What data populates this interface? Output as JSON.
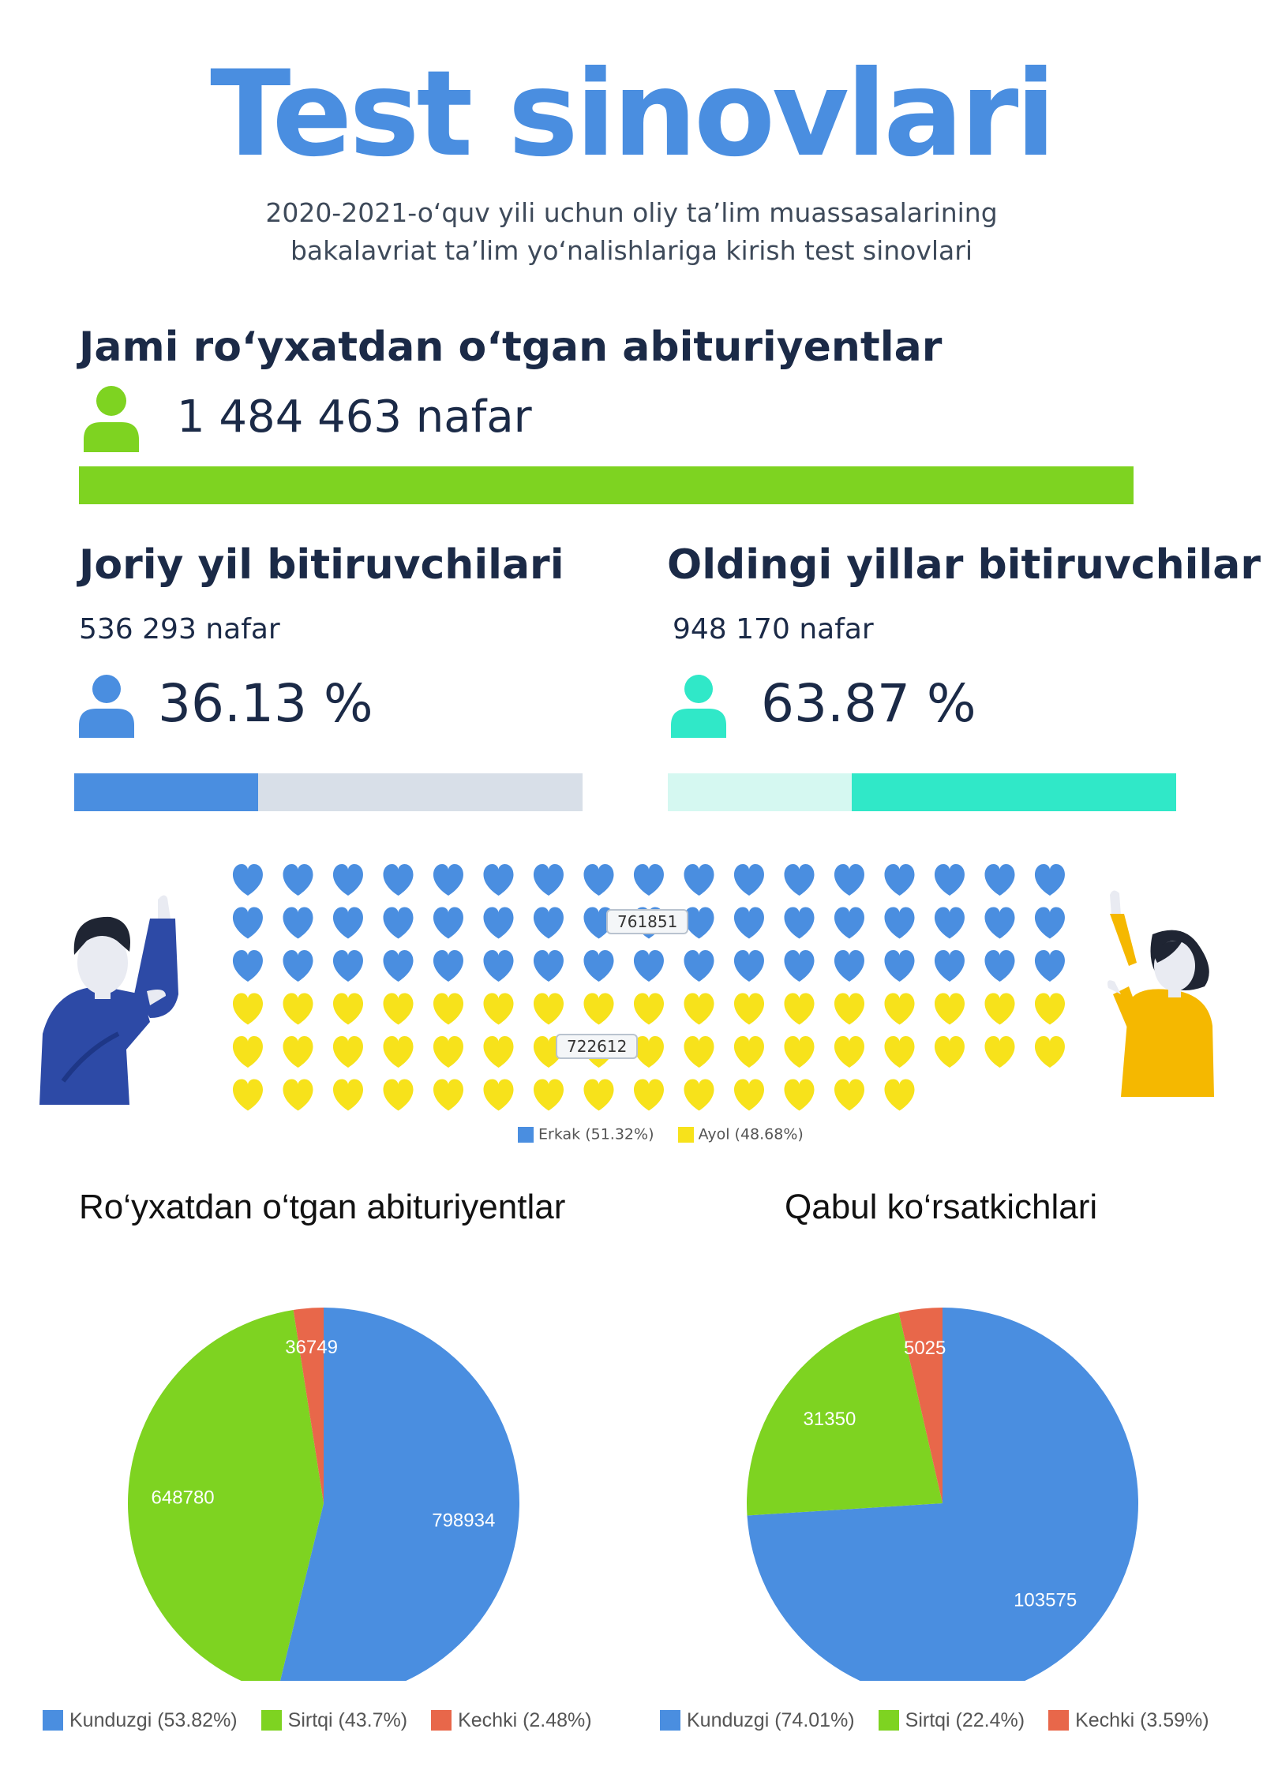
{
  "title": "Test sinovlari",
  "subtitle_line1": "2020-2021-o‘quv yili uchun oliy ta’lim muassasalarining",
  "subtitle_line2": "bakalavriat ta’lim yo‘nalishlariga kirish test sinovlari",
  "total": {
    "heading": "Jami ro‘yxatdan o‘tgan abituriyentlar",
    "value": "1 484 463 nafar",
    "icon": "person-icon",
    "color": "#7ed321"
  },
  "current": {
    "heading": "Joriy yil bitiruvchilari",
    "count": "536 293 nafar",
    "percent": "36.13 %",
    "share": 0.3613,
    "color": "#4a8ee0",
    "track_color": "#d8dfe8"
  },
  "previous": {
    "heading": "Oldingi yillar bitiruvchilari",
    "count": "948 170 nafar",
    "percent": "63.87 %",
    "share": 0.6387,
    "color": "#30e8c8",
    "track_color": "#d5f8f1"
  },
  "colors": {
    "blue": "#4a8ee0",
    "green": "#7ed321",
    "red": "#e8674a",
    "yellow": "#f7e21b"
  },
  "chart_data": [
    {
      "type": "pictogram",
      "icon": "heart-icon",
      "series": [
        {
          "name": "Erkak (51.32%)",
          "value": 761851,
          "value_label": "761851",
          "icons": 51,
          "color": "#4a8ee0"
        },
        {
          "name": "Ayol (48.68%)",
          "value": 722612,
          "value_label": "722612",
          "icons": 48,
          "color": "#f7e21b"
        }
      ]
    },
    {
      "type": "pie",
      "title": "Ro‘yxatdan o‘tgan abituriyentlar",
      "labels": [
        "Kunduzgi (53.82%)",
        "Sirtqi (43.7%)",
        "Kechki (2.48%)"
      ],
      "values": [
        798934,
        648780,
        36749
      ],
      "value_labels": [
        "798934",
        "648780",
        "36749"
      ],
      "colors": [
        "#4a8ee0",
        "#7ed321",
        "#e8674a"
      ]
    },
    {
      "type": "pie",
      "title": "Qabul ko‘rsatkichlari",
      "labels": [
        "Kunduzgi (74.01%)",
        "Sirtqi (22.4%)",
        "Kechki (3.59%)"
      ],
      "values": [
        103575,
        31350,
        5025
      ],
      "value_labels": [
        "103575",
        "31350",
        "5025"
      ],
      "colors": [
        "#4a8ee0",
        "#7ed321",
        "#e8674a"
      ]
    }
  ]
}
